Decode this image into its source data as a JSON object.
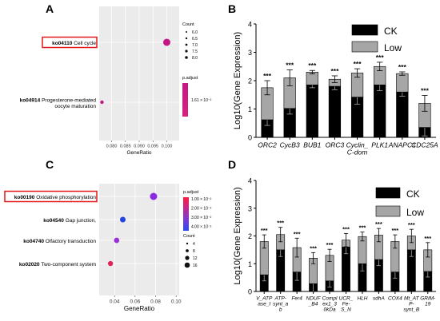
{
  "figure": {
    "panels": {
      "A": "A",
      "B": "B",
      "C": "C",
      "D": "D"
    }
  },
  "chart_data": [
    {
      "panel": "A",
      "type": "scatter",
      "subtype": "dot-plot",
      "xlabel": "GeneRatio",
      "ylabel": "",
      "xticks": [
        "0.080",
        "0.085",
        "0.090",
        "0.095",
        "0.100"
      ],
      "xlim": [
        0.0755,
        0.1045
      ],
      "categories": [
        {
          "id": "ko04110",
          "name": "Cell cycle",
          "highlight": true,
          "gene_ratio": 0.1,
          "count": 8,
          "color": "#c71585"
        },
        {
          "id": "ko04914",
          "name": "Progesterone-mediated oocyte maturation",
          "gene_ratio": 0.0765,
          "count": 6,
          "color": "#c71585"
        }
      ],
      "size_legend": {
        "title": "Count",
        "labels": [
          "6.0",
          "6.5",
          "7.0",
          "7.5",
          "8.0"
        ]
      },
      "color_legend": {
        "title": "p.adjust",
        "labels": [
          "1.61 × 10⁻²"
        ],
        "colors": [
          "#c71585",
          "#d6217f"
        ]
      }
    },
    {
      "panel": "B",
      "type": "bar",
      "subtype": "stacked",
      "ylabel": "Log10(Gene Expression)",
      "ylim": [
        0,
        4
      ],
      "yticks": [
        "0",
        "1",
        "2",
        "3",
        "4"
      ],
      "categories": [
        "ORC2",
        "CycB3",
        "BUB1",
        "ORC3",
        "Cyclin_\nC-dom",
        "PLK1",
        "ANAPC1",
        "CDC25A"
      ],
      "series": [
        {
          "name": "CK",
          "color": "#000000",
          "values": [
            0.62,
            1.02,
            1.85,
            1.8,
            1.42,
            1.85,
            1.6,
            0.35
          ],
          "errors": [
            0.2,
            0.2,
            0.1,
            0.12,
            0.25,
            0.2,
            0.15,
            0.3
          ]
        },
        {
          "name": "Low",
          "color": "#a6a6a6",
          "values": [
            1.13,
            1.08,
            0.45,
            0.25,
            0.85,
            0.65,
            0.65,
            0.85
          ],
          "errors": [
            0.25,
            0.28,
            0.06,
            0.12,
            0.15,
            0.15,
            0.06,
            0.28
          ]
        }
      ],
      "annotations": [
        "***",
        "***",
        "***",
        "***",
        "***",
        "***",
        "***",
        "***"
      ]
    },
    {
      "panel": "C",
      "type": "scatter",
      "subtype": "dot-plot",
      "xlabel": "GeneRatio",
      "ylabel": "",
      "xticks": [
        "0.04",
        "0.06",
        "0.08",
        "0.10"
      ],
      "xlim": [
        0.025,
        0.103
      ],
      "categories": [
        {
          "id": "ko00190",
          "name": "Oxidative phosphorylation",
          "highlight": true,
          "gene_ratio": 0.078,
          "count": 13,
          "color": "#8a2be2"
        },
        {
          "id": "ko04540",
          "name": "Gap junction",
          "gene_ratio": 0.048,
          "count": 7,
          "color": "#2244dd"
        },
        {
          "id": "ko04740",
          "name": "Olfactory transduction",
          "gene_ratio": 0.042,
          "count": 6,
          "color": "#9b30d8"
        },
        {
          "id": "ko02020",
          "name": "Two-component system",
          "gene_ratio": 0.036,
          "count": 5,
          "color": "#e8205a"
        }
      ],
      "size_legend": {
        "title": "Count",
        "labels": [
          "4",
          "8",
          "12",
          "16"
        ]
      },
      "color_legend": {
        "title": "p.adjust",
        "labels": [
          "1.00 × 10⁻²",
          "2.00 × 10⁻²",
          "3.00 × 10⁻²",
          "4.00 × 10⁻²"
        ],
        "colors": [
          "#ff1a40",
          "#c02890",
          "#7a3ad0",
          "#2a4cf0"
        ]
      }
    },
    {
      "panel": "D",
      "type": "bar",
      "subtype": "stacked",
      "ylabel": "Log10(Gene Expression)",
      "ylim": [
        0,
        4
      ],
      "yticks": [
        "0",
        "1",
        "2",
        "3",
        "4"
      ],
      "categories": [
        "V_ATP\nase_I",
        "ATP-\nsynt_a\nb",
        "Fer4",
        "NDUF\n_B4",
        "Compl\nex1_3\n0kDa",
        "UCR_\nFe-\nS_N",
        "HLH",
        "sdhA",
        "COX4",
        "Mt_AT\nP-\nsynt_B",
        "GRIM-\n19"
      ],
      "series": [
        {
          "name": "CK",
          "color": "#000000",
          "values": [
            0.6,
            1.5,
            0.7,
            0.28,
            0.38,
            1.6,
            1.0,
            1.15,
            0.7,
            1.5,
            0.72
          ],
          "errors": [
            0.22,
            0.24,
            0.3,
            0.3,
            0.22,
            0.24,
            0.26,
            0.22,
            0.22,
            0.24,
            0.2
          ]
        },
        {
          "name": "Low",
          "color": "#a6a6a6",
          "values": [
            1.2,
            0.55,
            0.88,
            0.92,
            0.92,
            0.25,
            0.98,
            0.88,
            1.1,
            0.5,
            0.78
          ],
          "errors": [
            0.24,
            0.26,
            0.34,
            0.2,
            0.22,
            0.24,
            0.16,
            0.24,
            0.24,
            0.24,
            0.26
          ]
        }
      ],
      "annotations": [
        "***",
        "***",
        "***",
        "***",
        "***",
        "***",
        "***",
        "***",
        "***",
        "***",
        "***"
      ]
    }
  ]
}
